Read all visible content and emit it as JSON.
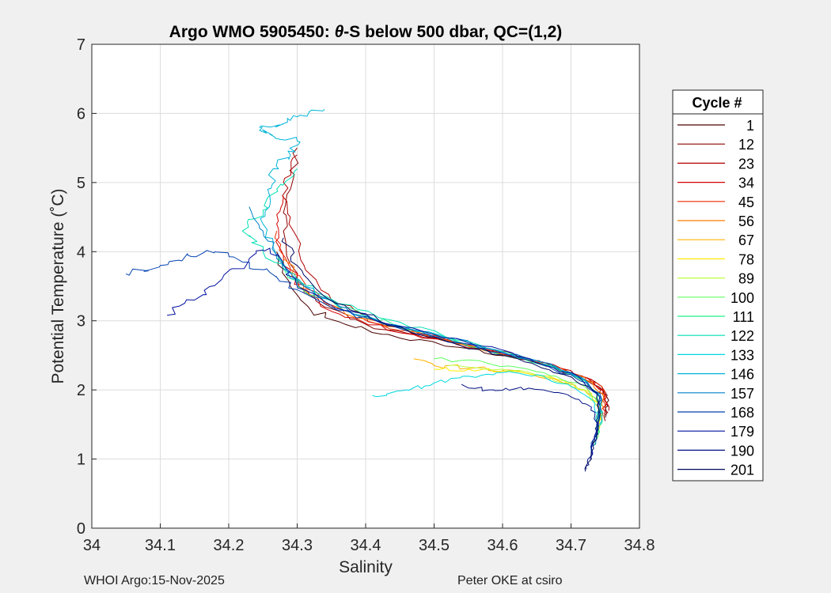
{
  "chart_data": {
    "type": "line",
    "title_prefix": "Argo WMO 5905450: ",
    "title_theta": "θ",
    "title_suffix": "-S below 500 dbar,  QC=(1,2)",
    "xlabel": "Salinity",
    "ylabel": "Potential Temperature (˚C)",
    "xlim": [
      34,
      34.8
    ],
    "ylim": [
      0,
      7
    ],
    "xticks": [
      "34",
      "34.1",
      "34.2",
      "34.3",
      "34.4",
      "34.5",
      "34.6",
      "34.7",
      "34.8"
    ],
    "yticks": [
      "0",
      "1",
      "2",
      "3",
      "4",
      "5",
      "6",
      "7"
    ],
    "grid": true,
    "legend": {
      "title": "Cycle #",
      "placement": "outside-right",
      "entries": [
        {
          "label": "1",
          "color": "#4a0000"
        },
        {
          "label": "12",
          "color": "#8c0000"
        },
        {
          "label": "23",
          "color": "#b00000"
        },
        {
          "label": "34",
          "color": "#d40000"
        },
        {
          "label": "45",
          "color": "#ee2a00"
        },
        {
          "label": "56",
          "color": "#ff7a00"
        },
        {
          "label": "67",
          "color": "#ffb400"
        },
        {
          "label": "78",
          "color": "#ffec00"
        },
        {
          "label": "89",
          "color": "#bfff3f"
        },
        {
          "label": "100",
          "color": "#60ff60"
        },
        {
          "label": "111",
          "color": "#20f08a"
        },
        {
          "label": "122",
          "color": "#00e0b4"
        },
        {
          "label": "133",
          "color": "#00d8e0"
        },
        {
          "label": "146",
          "color": "#00b4d8"
        },
        {
          "label": "157",
          "color": "#0080c8"
        },
        {
          "label": "168",
          "color": "#0040b0"
        },
        {
          "label": "179",
          "color": "#0010a0"
        },
        {
          "label": "190",
          "color": "#001085"
        },
        {
          "label": "201",
          "color": "#000860"
        }
      ]
    },
    "series": [
      {
        "name": "1",
        "color": "#4a0000",
        "points": [
          [
            34.27,
            4.0
          ],
          [
            34.29,
            3.5
          ],
          [
            34.32,
            3.15
          ],
          [
            34.37,
            2.95
          ],
          [
            34.45,
            2.75
          ],
          [
            34.55,
            2.6
          ],
          [
            34.63,
            2.45
          ],
          [
            34.7,
            2.25
          ],
          [
            34.745,
            2.05
          ],
          [
            34.755,
            1.85
          ],
          [
            34.75,
            1.6
          ]
        ]
      },
      {
        "name": "12",
        "color": "#8c0000",
        "points": [
          [
            34.3,
            5.5
          ],
          [
            34.29,
            4.9
          ],
          [
            34.28,
            4.3
          ],
          [
            34.3,
            3.6
          ],
          [
            34.34,
            3.2
          ],
          [
            34.4,
            2.95
          ],
          [
            34.5,
            2.75
          ],
          [
            34.6,
            2.5
          ],
          [
            34.68,
            2.3
          ],
          [
            34.74,
            2.05
          ],
          [
            34.752,
            1.8
          ],
          [
            34.75,
            1.55
          ]
        ]
      },
      {
        "name": "23",
        "color": "#b00000",
        "points": [
          [
            34.3,
            5.4
          ],
          [
            34.28,
            5.0
          ],
          [
            34.29,
            4.5
          ],
          [
            34.31,
            3.8
          ],
          [
            34.35,
            3.3
          ],
          [
            34.42,
            2.95
          ],
          [
            34.52,
            2.7
          ],
          [
            34.62,
            2.48
          ],
          [
            34.7,
            2.28
          ],
          [
            34.748,
            2.0
          ],
          [
            34.755,
            1.7
          ]
        ]
      },
      {
        "name": "34",
        "color": "#d40000",
        "points": [
          [
            34.28,
            4.8
          ],
          [
            34.27,
            4.4
          ],
          [
            34.28,
            3.9
          ],
          [
            34.31,
            3.4
          ],
          [
            34.37,
            3.05
          ],
          [
            34.47,
            2.8
          ],
          [
            34.57,
            2.6
          ],
          [
            34.66,
            2.4
          ],
          [
            34.73,
            2.15
          ],
          [
            34.752,
            1.9
          ],
          [
            34.748,
            1.65
          ]
        ]
      },
      {
        "name": "45",
        "color": "#ee2a00",
        "points": [
          [
            34.27,
            4.3
          ],
          [
            34.29,
            3.7
          ],
          [
            34.34,
            3.25
          ],
          [
            34.42,
            2.95
          ],
          [
            34.52,
            2.72
          ],
          [
            34.62,
            2.5
          ],
          [
            34.69,
            2.3
          ],
          [
            34.745,
            2.05
          ],
          [
            34.75,
            1.75
          ]
        ]
      },
      {
        "name": "56",
        "color": "#ff7a00",
        "points": [
          [
            34.28,
            3.9
          ],
          [
            34.31,
            3.45
          ],
          [
            34.37,
            3.1
          ],
          [
            34.46,
            2.85
          ],
          [
            34.56,
            2.62
          ],
          [
            34.65,
            2.42
          ],
          [
            34.72,
            2.18
          ],
          [
            34.748,
            1.9
          ],
          [
            34.745,
            1.6
          ]
        ]
      },
      {
        "name": "67",
        "color": "#ffb400",
        "points": [
          [
            34.47,
            2.45
          ],
          [
            34.5,
            2.35
          ],
          [
            34.56,
            2.32
          ],
          [
            34.63,
            2.25
          ],
          [
            34.7,
            2.1
          ],
          [
            34.74,
            1.85
          ],
          [
            34.745,
            1.55
          ]
        ]
      },
      {
        "name": "78",
        "color": "#ffec00",
        "points": [
          [
            34.5,
            2.3
          ],
          [
            34.55,
            2.3
          ],
          [
            34.61,
            2.27
          ],
          [
            34.68,
            2.15
          ],
          [
            34.73,
            1.95
          ],
          [
            34.742,
            1.7
          ],
          [
            34.74,
            1.4
          ]
        ]
      },
      {
        "name": "89",
        "color": "#bfff3f",
        "points": [
          [
            34.52,
            2.35
          ],
          [
            34.6,
            2.3
          ],
          [
            34.67,
            2.18
          ],
          [
            34.72,
            2.0
          ],
          [
            34.74,
            1.75
          ],
          [
            34.738,
            1.4
          ]
        ]
      },
      {
        "name": "100",
        "color": "#60ff60",
        "points": [
          [
            34.5,
            2.45
          ],
          [
            34.58,
            2.38
          ],
          [
            34.66,
            2.25
          ],
          [
            34.72,
            2.05
          ],
          [
            34.742,
            1.8
          ],
          [
            34.74,
            1.45
          ],
          [
            34.735,
            1.2
          ]
        ]
      },
      {
        "name": "111",
        "color": "#20f08a",
        "points": [
          [
            34.27,
            3.9
          ],
          [
            34.3,
            3.5
          ],
          [
            34.36,
            3.2
          ],
          [
            34.44,
            2.95
          ],
          [
            34.54,
            2.68
          ],
          [
            34.63,
            2.45
          ],
          [
            34.7,
            2.22
          ],
          [
            34.74,
            1.95
          ],
          [
            34.745,
            1.6
          ],
          [
            34.738,
            1.3
          ]
        ]
      },
      {
        "name": "122",
        "color": "#00e0b4",
        "points": [
          [
            34.3,
            5.2
          ],
          [
            34.27,
            4.9
          ],
          [
            34.25,
            4.6
          ],
          [
            34.22,
            4.3
          ],
          [
            34.25,
            4.0
          ],
          [
            34.3,
            3.6
          ],
          [
            34.36,
            3.25
          ],
          [
            34.45,
            2.98
          ],
          [
            34.55,
            2.7
          ],
          [
            34.64,
            2.45
          ],
          [
            34.71,
            2.2
          ],
          [
            34.742,
            1.9
          ],
          [
            34.742,
            1.55
          ]
        ]
      },
      {
        "name": "133",
        "color": "#00d8e0",
        "points": [
          [
            34.41,
            1.92
          ],
          [
            34.46,
            2.0
          ],
          [
            34.5,
            2.1
          ],
          [
            34.55,
            2.2
          ],
          [
            34.6,
            2.25
          ],
          [
            34.65,
            2.22
          ],
          [
            34.7,
            2.05
          ],
          [
            34.735,
            1.8
          ],
          [
            34.74,
            1.5
          ]
        ]
      },
      {
        "name": "146",
        "color": "#00b4d8",
        "points": [
          [
            34.34,
            6.06
          ],
          [
            34.3,
            5.95
          ],
          [
            34.28,
            5.85
          ],
          [
            34.245,
            5.8
          ],
          [
            34.26,
            5.7
          ],
          [
            34.3,
            5.6
          ],
          [
            34.29,
            5.4
          ],
          [
            34.265,
            5.2
          ],
          [
            34.26,
            4.8
          ],
          [
            34.25,
            4.4
          ],
          [
            34.27,
            3.95
          ],
          [
            34.31,
            3.5
          ],
          [
            34.37,
            3.15
          ],
          [
            34.46,
            2.9
          ],
          [
            34.56,
            2.65
          ],
          [
            34.65,
            2.42
          ],
          [
            34.72,
            2.15
          ],
          [
            34.745,
            1.85
          ],
          [
            34.742,
            1.5
          ]
        ]
      },
      {
        "name": "157",
        "color": "#0080c8",
        "points": [
          [
            34.23,
            4.65
          ],
          [
            34.25,
            4.3
          ],
          [
            34.27,
            3.9
          ],
          [
            34.31,
            3.5
          ],
          [
            34.38,
            3.1
          ],
          [
            34.48,
            2.85
          ],
          [
            34.58,
            2.6
          ],
          [
            34.66,
            2.4
          ],
          [
            34.72,
            2.15
          ],
          [
            34.745,
            1.85
          ],
          [
            34.74,
            1.5
          ],
          [
            34.73,
            1.1
          ]
        ]
      },
      {
        "name": "168",
        "color": "#0040b0",
        "points": [
          [
            34.05,
            3.68
          ],
          [
            34.1,
            3.8
          ],
          [
            34.14,
            3.95
          ],
          [
            34.18,
            4.0
          ],
          [
            34.22,
            3.85
          ],
          [
            34.26,
            3.7
          ],
          [
            34.3,
            3.45
          ],
          [
            34.36,
            3.15
          ],
          [
            34.44,
            2.92
          ],
          [
            34.54,
            2.68
          ],
          [
            34.63,
            2.45
          ],
          [
            34.7,
            2.22
          ],
          [
            34.742,
            1.95
          ],
          [
            34.74,
            1.55
          ],
          [
            34.73,
            1.15
          ]
        ]
      },
      {
        "name": "179",
        "color": "#0010a0",
        "points": [
          [
            34.11,
            3.08
          ],
          [
            34.15,
            3.3
          ],
          [
            34.19,
            3.6
          ],
          [
            34.23,
            3.9
          ],
          [
            34.26,
            4.05
          ],
          [
            34.28,
            3.8
          ],
          [
            34.31,
            3.45
          ],
          [
            34.37,
            3.15
          ],
          [
            34.45,
            2.92
          ],
          [
            34.55,
            2.68
          ],
          [
            34.64,
            2.45
          ],
          [
            34.71,
            2.2
          ],
          [
            34.742,
            1.9
          ],
          [
            34.738,
            1.5
          ],
          [
            34.728,
            1.0
          ]
        ]
      },
      {
        "name": "190",
        "color": "#001085",
        "points": [
          [
            34.54,
            2.08
          ],
          [
            34.58,
            2.0
          ],
          [
            34.62,
            2.02
          ],
          [
            34.66,
            2.0
          ],
          [
            34.7,
            1.9
          ],
          [
            34.73,
            1.75
          ],
          [
            34.74,
            1.5
          ],
          [
            34.73,
            1.1
          ],
          [
            34.722,
            0.85
          ]
        ]
      },
      {
        "name": "201",
        "color": "#000860",
        "points": [
          [
            34.28,
            4.2
          ],
          [
            34.3,
            3.8
          ],
          [
            34.34,
            3.35
          ],
          [
            34.42,
            3.0
          ],
          [
            34.52,
            2.7
          ],
          [
            34.62,
            2.46
          ],
          [
            34.69,
            2.22
          ],
          [
            34.738,
            1.95
          ],
          [
            34.742,
            1.6
          ],
          [
            34.733,
            1.15
          ],
          [
            34.721,
            0.82
          ]
        ]
      }
    ]
  },
  "footer": {
    "left": "WHOI Argo:15-Nov-2025",
    "right": "Peter OKE at csiro"
  }
}
